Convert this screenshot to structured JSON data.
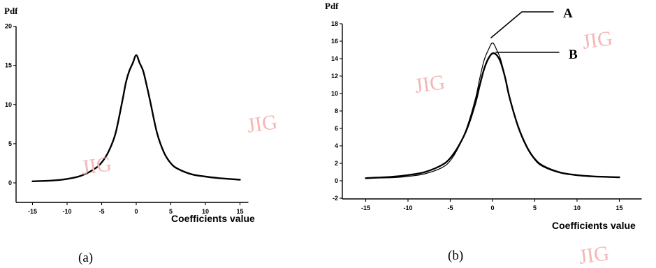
{
  "watermark": "JIG",
  "chart_data": [
    {
      "type": "line",
      "caption": "(a)",
      "ylabel": "Pdf",
      "xlabel": "Coefficients value",
      "xlim": [
        -15,
        15
      ],
      "ylim": [
        -2,
        20
      ],
      "xticks": [
        -15,
        -10,
        -5,
        0,
        5,
        10,
        15
      ],
      "yticks": [
        0,
        5,
        10,
        15,
        20
      ],
      "series": [
        {
          "x": [
            -15,
            -12,
            -10,
            -8,
            -6,
            -5,
            -4,
            -3,
            -2,
            -1.5,
            -1,
            -0.5,
            0,
            0.5,
            1,
            1.5,
            2,
            3,
            4,
            5,
            6,
            8,
            10,
            12,
            15
          ],
          "y": [
            0.2,
            0.3,
            0.5,
            0.9,
            1.8,
            2.6,
            4,
            6.3,
            10.5,
            12.8,
            14.3,
            15.3,
            16.3,
            15.3,
            14.3,
            12.5,
            10.5,
            6.4,
            3.9,
            2.5,
            1.8,
            1.1,
            0.8,
            0.6,
            0.4
          ]
        }
      ]
    },
    {
      "type": "line",
      "caption": "(b)",
      "ylabel": "Pdf",
      "xlabel": "Coefficients value",
      "xlim": [
        -15,
        15
      ],
      "ylim": [
        -2,
        18
      ],
      "xticks": [
        -15,
        -10,
        -5,
        0,
        5,
        10,
        15
      ],
      "yticks": [
        -2,
        0,
        2,
        4,
        6,
        8,
        10,
        12,
        14,
        16,
        18
      ],
      "series": [
        {
          "name": "A",
          "x": [
            -15,
            -12,
            -10,
            -8,
            -6,
            -5,
            -4,
            -3,
            -2,
            -1.5,
            -1,
            -0.5,
            0,
            0.5,
            1,
            1.5,
            2,
            3,
            4,
            5,
            6,
            8,
            10,
            12,
            15
          ],
          "y": [
            0.3,
            0.35,
            0.5,
            0.8,
            1.5,
            2.3,
            3.9,
            6.2,
            9.5,
            11.8,
            13.8,
            15.0,
            15.8,
            15.0,
            13.8,
            11.8,
            9.5,
            6.2,
            3.9,
            2.4,
            1.6,
            0.9,
            0.6,
            0.5,
            0.4
          ]
        },
        {
          "name": "B",
          "x": [
            -15,
            -12,
            -10,
            -8,
            -6,
            -5,
            -4,
            -3,
            -2,
            -1.5,
            -1,
            -0.5,
            0,
            0.5,
            1,
            1.5,
            2,
            3,
            4,
            5,
            6,
            8,
            10,
            12,
            15
          ],
          "y": [
            0.3,
            0.45,
            0.65,
            1.0,
            1.8,
            2.6,
            4.0,
            6.0,
            9.0,
            11.0,
            12.8,
            14.0,
            14.6,
            14.4,
            13.5,
            11.8,
            9.6,
            6.3,
            4.0,
            2.5,
            1.7,
            0.95,
            0.65,
            0.5,
            0.4
          ]
        }
      ]
    }
  ]
}
